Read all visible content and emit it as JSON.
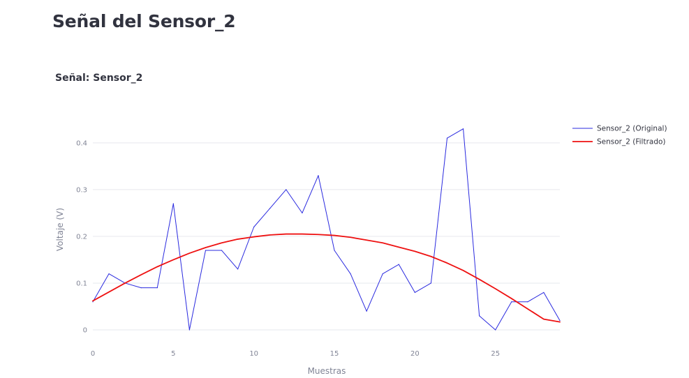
{
  "page": {
    "title": "Señal del Sensor_2"
  },
  "chart_data": {
    "type": "line",
    "title": "Señal: Sensor_2",
    "xlabel": "Muestras",
    "ylabel": "Voltaje (V)",
    "xlim": [
      0,
      29
    ],
    "ylim": [
      0,
      0.44
    ],
    "x_ticks": [
      0,
      5,
      10,
      15,
      20,
      25
    ],
    "y_ticks": [
      0,
      0.1,
      0.2,
      0.3,
      0.4
    ],
    "y_tick_labels": [
      "0",
      "0.1",
      "0.2",
      "0.3",
      "0.4"
    ],
    "grid": true,
    "legend_position": "top-right",
    "x": [
      0,
      1,
      2,
      3,
      4,
      5,
      6,
      7,
      8,
      9,
      10,
      11,
      12,
      13,
      14,
      15,
      16,
      17,
      18,
      19,
      20,
      21,
      22,
      23,
      24,
      25,
      26,
      27,
      28,
      29
    ],
    "series": [
      {
        "name": "Sensor_2 (Original)",
        "color": "#2a2adf",
        "values": [
          0.06,
          0.12,
          0.1,
          0.09,
          0.09,
          0.27,
          0.0,
          0.17,
          0.17,
          0.13,
          0.22,
          0.26,
          0.3,
          0.25,
          0.33,
          0.17,
          0.12,
          0.04,
          0.12,
          0.14,
          0.08,
          0.1,
          0.41,
          0.43,
          0.03,
          0.0,
          0.06,
          0.06,
          0.08,
          0.02
        ]
      },
      {
        "name": "Sensor_2 (Filtrado)",
        "color": "#ee1111",
        "values": [
          0.062,
          0.081,
          0.1,
          0.118,
          0.135,
          0.15,
          0.164,
          0.176,
          0.186,
          0.194,
          0.199,
          0.203,
          0.205,
          0.205,
          0.204,
          0.202,
          0.198,
          0.192,
          0.186,
          0.177,
          0.168,
          0.157,
          0.143,
          0.127,
          0.108,
          0.088,
          0.067,
          0.045,
          0.023,
          0.017
        ]
      }
    ]
  }
}
